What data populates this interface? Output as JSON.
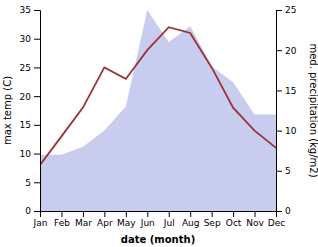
{
  "chart_data": {
    "type": "line",
    "categories": [
      "Jan",
      "Feb",
      "Mar",
      "Apr",
      "May",
      "Jun",
      "Jul",
      "Aug",
      "Sep",
      "Oct",
      "Nov",
      "Dec"
    ],
    "xlabel": "date (month)",
    "ylabel": "max temp (C)",
    "y2label": "med. precipitation (kg/m2)",
    "ylim": [
      0,
      35
    ],
    "yticks": [
      0,
      5,
      10,
      15,
      20,
      25,
      30,
      35
    ],
    "y2lim": [
      0,
      25
    ],
    "y2ticks": [
      0,
      5,
      10,
      15,
      20,
      25
    ],
    "grid": false,
    "series": [
      {
        "type": "area",
        "axis": "y2",
        "color": "#b0b8e8",
        "values": [
          7,
          7,
          8,
          10,
          13,
          25,
          21,
          23,
          18,
          16,
          12,
          12
        ]
      },
      {
        "type": "line",
        "color": "#993333",
        "values": [
          8,
          13,
          18,
          25,
          23,
          28,
          32,
          31,
          25,
          18,
          14,
          11
        ]
      }
    ]
  }
}
